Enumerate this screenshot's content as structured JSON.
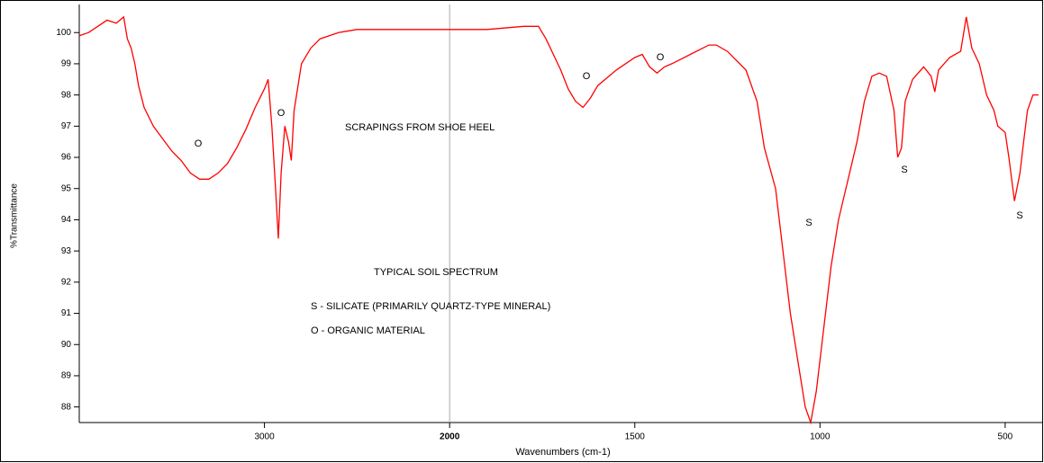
{
  "chart_data": {
    "type": "line",
    "x_label": "Wavenumbers (cm-1)",
    "y_label": "%Transmittance",
    "color": "#ff0000",
    "xlim": [
      4000,
      400
    ],
    "xbreak": 2000,
    "xticks": [
      3000,
      2000,
      1500,
      1000,
      500
    ],
    "ylim": [
      87.5,
      100.9
    ],
    "yticks": [
      88,
      89,
      90,
      91,
      92,
      93,
      94,
      95,
      96,
      97,
      98,
      99,
      100
    ],
    "x": [
      4000,
      3950,
      3900,
      3850,
      3800,
      3760,
      3740,
      3720,
      3700,
      3680,
      3650,
      3600,
      3550,
      3500,
      3450,
      3400,
      3350,
      3300,
      3250,
      3200,
      3150,
      3100,
      3050,
      3000,
      2980,
      2960,
      2940,
      2925,
      2910,
      2890,
      2870,
      2855,
      2840,
      2800,
      2750,
      2700,
      2600,
      2500,
      2400,
      2300,
      2200,
      2100,
      2000,
      1900,
      1800,
      1760,
      1740,
      1720,
      1700,
      1680,
      1660,
      1640,
      1620,
      1600,
      1550,
      1500,
      1480,
      1460,
      1440,
      1420,
      1400,
      1350,
      1300,
      1280,
      1250,
      1200,
      1170,
      1150,
      1120,
      1100,
      1080,
      1060,
      1040,
      1025,
      1010,
      990,
      970,
      950,
      920,
      900,
      880,
      860,
      840,
      820,
      800,
      790,
      780,
      770,
      750,
      720,
      700,
      690,
      680,
      650,
      620,
      605,
      590,
      570,
      550,
      530,
      520,
      500,
      490,
      475,
      460,
      450,
      440,
      425,
      410
    ],
    "values": [
      99.9,
      100.0,
      100.2,
      100.4,
      100.3,
      100.5,
      99.8,
      99.5,
      99.0,
      98.3,
      97.6,
      97.0,
      96.6,
      96.2,
      95.9,
      95.5,
      95.3,
      95.3,
      95.5,
      95.8,
      96.3,
      96.9,
      97.6,
      98.2,
      98.5,
      97.0,
      95.0,
      93.4,
      95.5,
      97.0,
      96.5,
      95.9,
      97.5,
      99.0,
      99.5,
      99.8,
      100.0,
      100.1,
      100.1,
      100.1,
      100.1,
      100.1,
      100.1,
      100.1,
      100.2,
      100.2,
      99.8,
      99.3,
      98.8,
      98.2,
      97.8,
      97.6,
      97.9,
      98.3,
      98.8,
      99.2,
      99.3,
      98.9,
      98.7,
      98.9,
      99.0,
      99.3,
      99.6,
      99.6,
      99.4,
      98.8,
      97.8,
      96.3,
      95.0,
      93.0,
      91.0,
      89.5,
      88.0,
      87.5,
      88.5,
      90.5,
      92.5,
      94.0,
      95.5,
      96.5,
      97.8,
      98.6,
      98.7,
      98.6,
      97.5,
      96.0,
      96.3,
      97.8,
      98.5,
      98.9,
      98.6,
      98.1,
      98.8,
      99.2,
      99.4,
      100.5,
      99.5,
      99.0,
      98.0,
      97.5,
      97.0,
      96.8,
      96.0,
      94.6,
      95.5,
      96.5,
      97.5,
      98.0,
      98.0
    ],
    "annotations": [
      "O",
      "O",
      "O",
      "O",
      "S",
      "S",
      "S",
      "SCRAPINGS FROM SHOE HEEL",
      "TYPICAL SOIL SPECTRUM",
      "S - SILICATE (PRIMARILY QUARTZ-TYPE MINERAL)",
      "O - ORGANIC MATERIAL"
    ]
  }
}
